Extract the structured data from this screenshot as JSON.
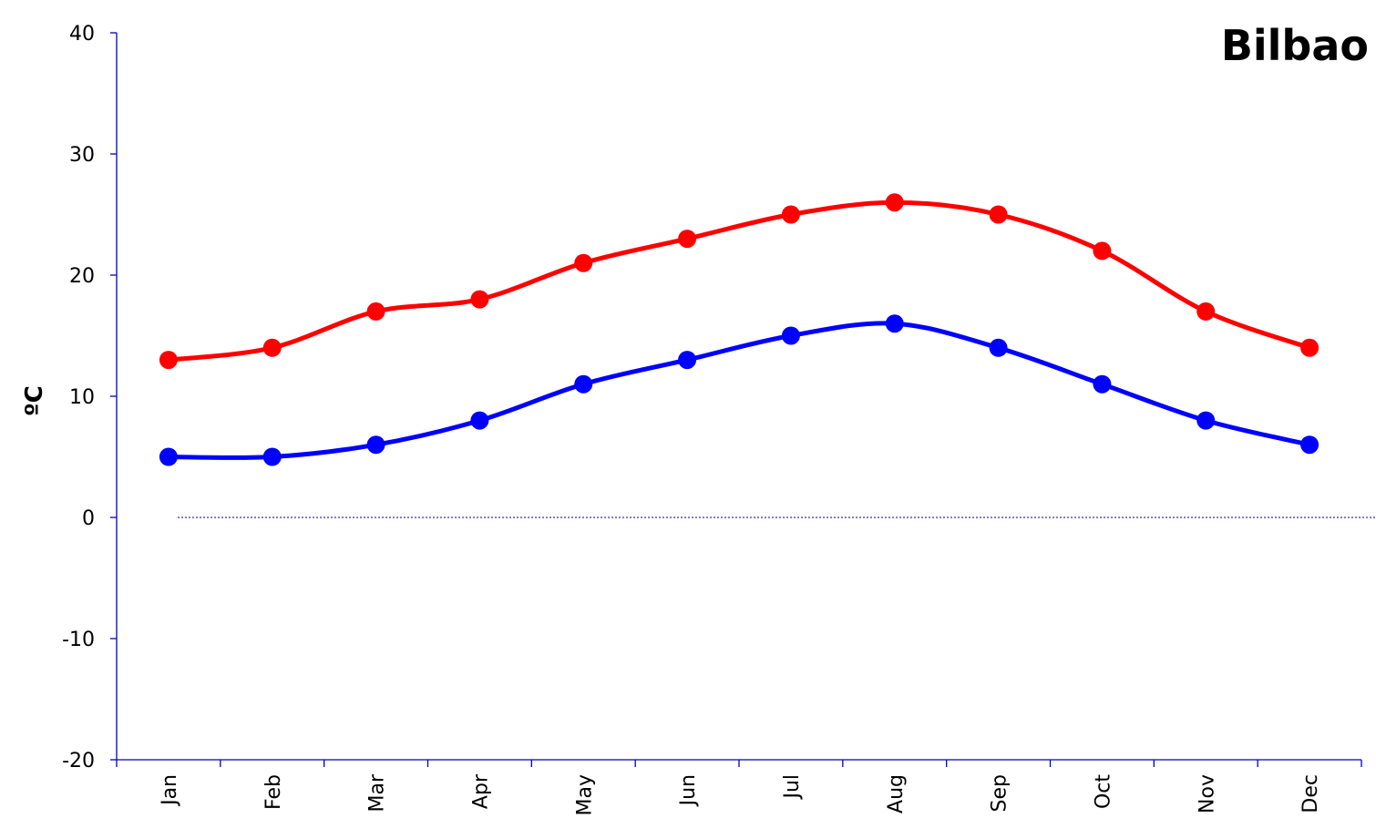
{
  "chart_data": {
    "type": "line",
    "title": "Bilbao",
    "ylabel": "ºC",
    "xlabel": "",
    "categories": [
      "Jan",
      "Feb",
      "Mar",
      "Apr",
      "May",
      "Jun",
      "Jul",
      "Aug",
      "Sep",
      "Oct",
      "Nov",
      "Dec"
    ],
    "ylim": [
      -20,
      40
    ],
    "yticks": [
      -20,
      -10,
      0,
      10,
      20,
      30,
      40
    ],
    "smooth": true,
    "zero_line": "dotted",
    "grid": false,
    "series": [
      {
        "color": "#ff0000",
        "values": [
          13,
          14,
          17,
          18,
          21,
          23,
          25,
          26,
          25,
          22,
          17,
          14
        ]
      },
      {
        "color": "#0000ff",
        "values": [
          5,
          5,
          6,
          8,
          11,
          13,
          15,
          16,
          14,
          11,
          8,
          6
        ]
      }
    ]
  }
}
